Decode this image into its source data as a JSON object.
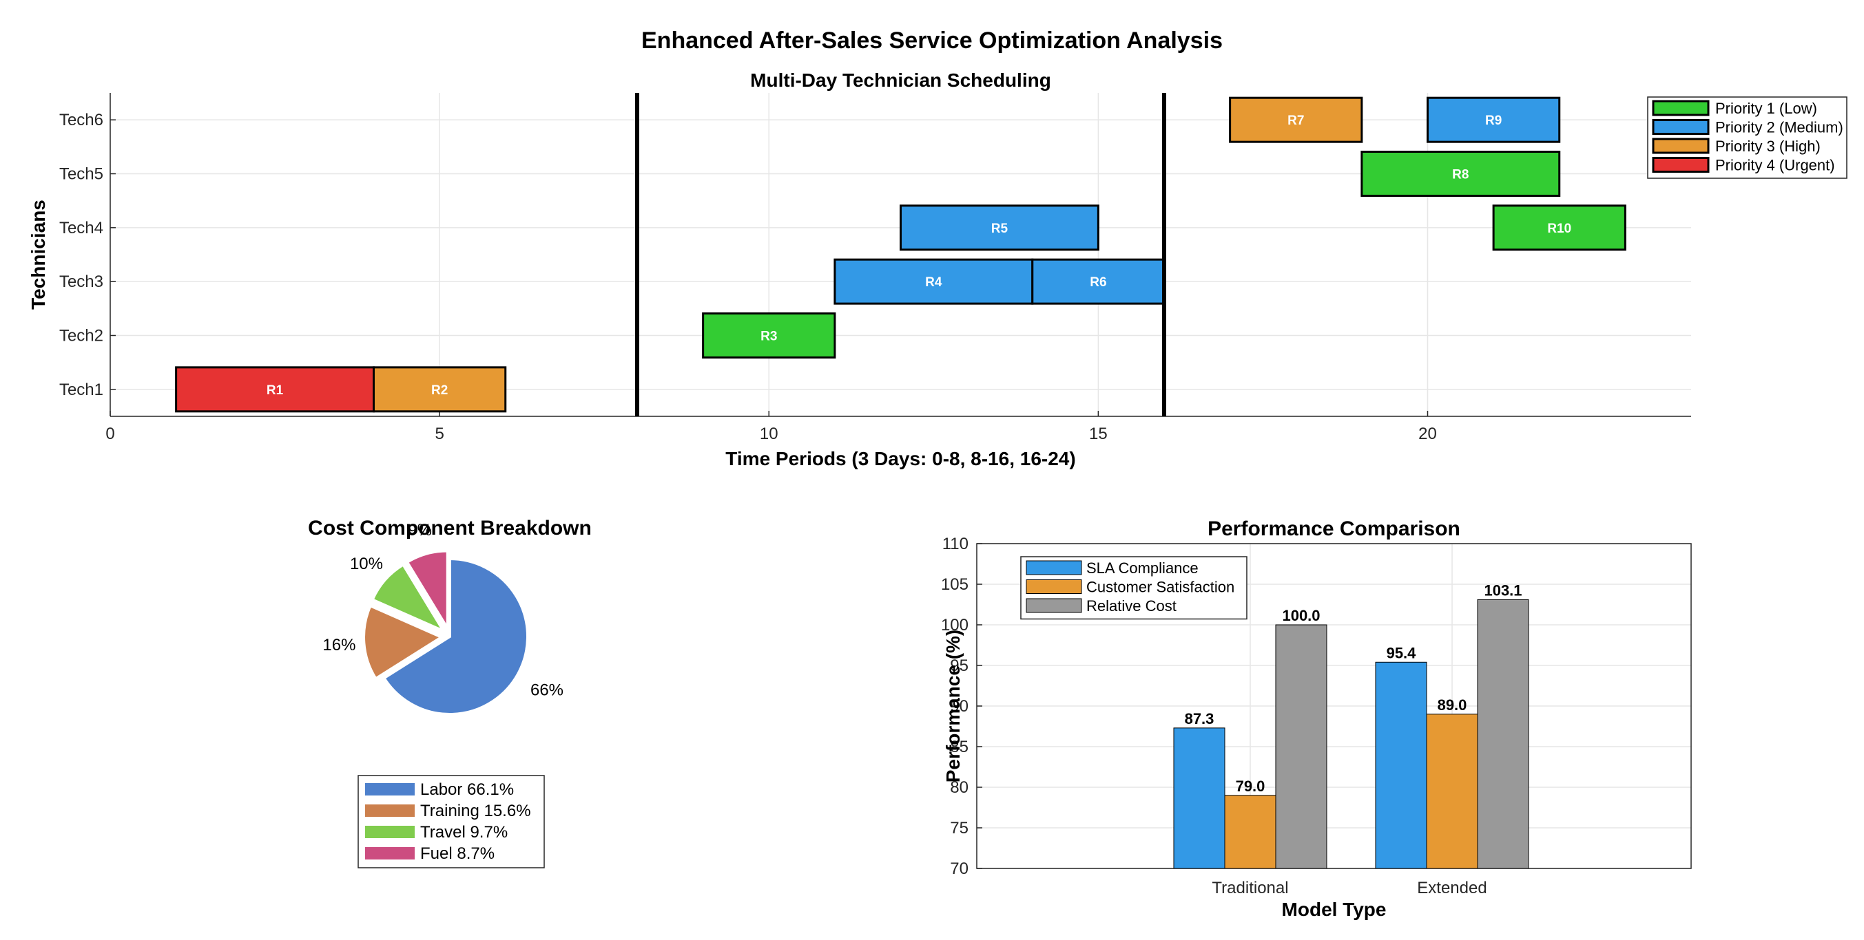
{
  "figure": {
    "title": "Enhanced After-Sales Service Optimization Analysis"
  },
  "chart_data": [
    {
      "type": "gantt",
      "title": "Multi-Day Technician Scheduling",
      "xlabel": "Time Periods (3 Days: 0-8, 8-16, 16-24)",
      "ylabel": "Technicians",
      "xlim": [
        0,
        24
      ],
      "xticks": [
        0,
        5,
        10,
        15,
        20
      ],
      "categories": [
        "Tech1",
        "Tech2",
        "Tech3",
        "Tech4",
        "Tech5",
        "Tech6"
      ],
      "day_boundaries": [
        8,
        16
      ],
      "grid": true,
      "legend": {
        "position": "top-right",
        "entries": [
          {
            "label": "Priority 1 (Low)",
            "priority": 1
          },
          {
            "label": "Priority 2 (Medium)",
            "priority": 2
          },
          {
            "label": "Priority 3 (High)",
            "priority": 3
          },
          {
            "label": "Priority 4 (Urgent)",
            "priority": 4
          }
        ]
      },
      "priority_colors": {
        "1": "#33cc33",
        "2": "#3399e6",
        "3": "#e69933",
        "4": "#e63333"
      },
      "tasks": [
        {
          "label": "R1",
          "tech": "Tech1",
          "start": 1,
          "end": 4,
          "priority": 4
        },
        {
          "label": "R2",
          "tech": "Tech1",
          "start": 4,
          "end": 6,
          "priority": 3
        },
        {
          "label": "R3",
          "tech": "Tech2",
          "start": 9,
          "end": 11,
          "priority": 1
        },
        {
          "label": "R4",
          "tech": "Tech3",
          "start": 11,
          "end": 14,
          "priority": 2
        },
        {
          "label": "R6",
          "tech": "Tech3",
          "start": 14,
          "end": 16,
          "priority": 2
        },
        {
          "label": "R5",
          "tech": "Tech4",
          "start": 12,
          "end": 15,
          "priority": 2
        },
        {
          "label": "R10",
          "tech": "Tech4",
          "start": 21,
          "end": 23,
          "priority": 1
        },
        {
          "label": "R8",
          "tech": "Tech5",
          "start": 19,
          "end": 22,
          "priority": 1
        },
        {
          "label": "R7",
          "tech": "Tech6",
          "start": 17,
          "end": 19,
          "priority": 3
        },
        {
          "label": "R9",
          "tech": "Tech6",
          "start": 20,
          "end": 22,
          "priority": 2
        }
      ]
    },
    {
      "type": "pie",
      "title": "Cost Component Breakdown",
      "slices": [
        {
          "name": "Labor",
          "value": 66.1,
          "label": "66%",
          "legend": "Labor 66.1%",
          "color": "#4d80cc",
          "explode": false
        },
        {
          "name": "Training",
          "value": 15.6,
          "label": "16%",
          "legend": "Training 15.6%",
          "color": "#cc804d",
          "explode": true
        },
        {
          "name": "Travel",
          "value": 9.7,
          "label": "10%",
          "legend": "Travel 9.7%",
          "color": "#80cc4d",
          "explode": true
        },
        {
          "name": "Fuel",
          "value": 8.7,
          "label": "9%",
          "legend": "Fuel 8.7%",
          "color": "#cc4d80",
          "explode": true
        }
      ],
      "legend_position": "bottom"
    },
    {
      "type": "bar",
      "title": "Performance Comparison",
      "xlabel": "Model Type",
      "ylabel": "Performance (%)",
      "categories": [
        "Traditional",
        "Extended"
      ],
      "ylim": [
        70,
        110
      ],
      "yticks": [
        70,
        75,
        80,
        85,
        90,
        95,
        100,
        105,
        110
      ],
      "grid": true,
      "legend_position": "top-left",
      "series": [
        {
          "name": "SLA Compliance",
          "values": [
            87.3,
            95.4
          ],
          "labels": [
            "87.3",
            "95.4"
          ],
          "color": "#3399e6"
        },
        {
          "name": "Customer Satisfaction",
          "values": [
            79.0,
            89.0
          ],
          "labels": [
            "79.0",
            "89.0"
          ],
          "color": "#e69933"
        },
        {
          "name": "Relative Cost",
          "values": [
            100.0,
            103.1
          ],
          "labels": [
            "100.0",
            "103.1"
          ],
          "color": "#999999"
        }
      ]
    }
  ]
}
